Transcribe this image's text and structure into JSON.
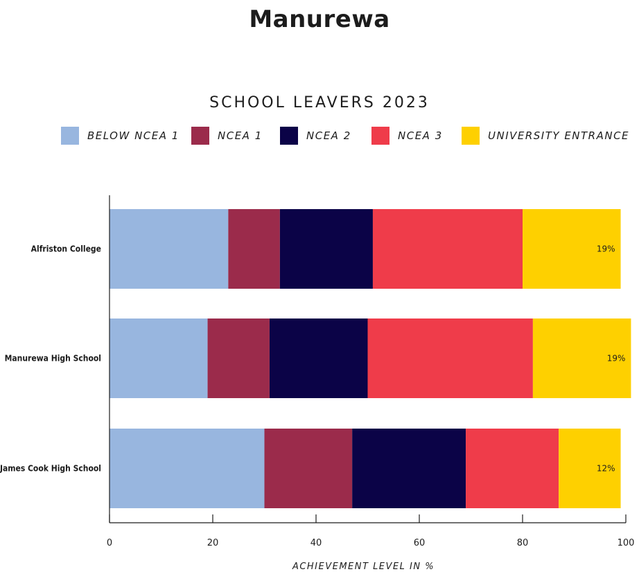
{
  "page": {
    "title": "Manurewa"
  },
  "chart_data": {
    "type": "bar",
    "orientation": "horizontal",
    "stacked": true,
    "title": "SCHOOL LEAVERS 2023",
    "xlabel": "ACHIEVEMENT LEVEL IN %",
    "ylabel": "",
    "xlim": [
      0,
      100
    ],
    "xticks": [
      0,
      20,
      40,
      60,
      80,
      100
    ],
    "categories": [
      "Alfriston College",
      "Manurewa High School",
      "James Cook High School"
    ],
    "series": [
      {
        "name": "BELOW NCEA 1",
        "color": "#98b6df",
        "values": [
          23,
          19,
          30
        ]
      },
      {
        "name": "NCEA 1",
        "color": "#9b2b4b",
        "values": [
          10,
          12,
          17
        ]
      },
      {
        "name": "NCEA 2",
        "color": "#0b0347",
        "values": [
          18,
          19,
          22
        ]
      },
      {
        "name": "NCEA 3",
        "color": "#ef3c4a",
        "values": [
          29,
          32,
          18
        ]
      },
      {
        "name": "UNIVERSITY ENTRANCE",
        "color": "#fed000",
        "values": [
          19,
          19,
          12
        ]
      }
    ],
    "data_labels": [
      "19%",
      "19%",
      "12%"
    ],
    "grid": false,
    "legend_position": "top"
  }
}
